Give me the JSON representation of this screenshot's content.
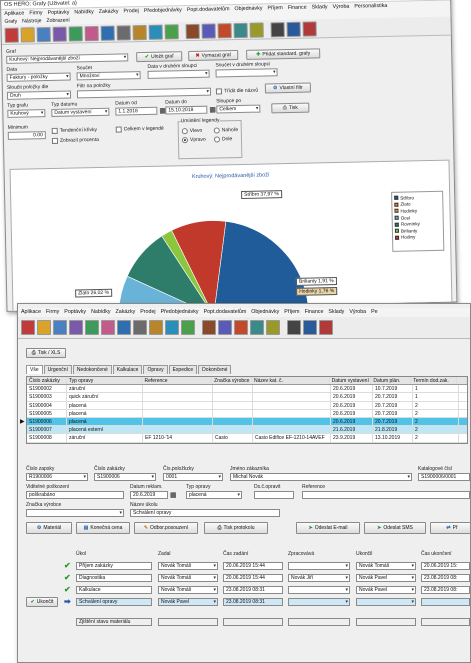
{
  "w1": {
    "title": "OS HERO: Grafy  (Uživatel: a)",
    "menu": [
      "Aplikace",
      "Firmy",
      "Poptávky",
      "Nabídky",
      "Zakázky",
      "Prodej",
      "Předobjednávky",
      "Popt.dodavatelům",
      "Objednávky",
      "Příjem",
      "Finance",
      "Sklady",
      "Výroba",
      "Personalistika"
    ],
    "submenu": [
      "Grafy",
      "Nástroje",
      "Zobrazení"
    ],
    "graf_label": "Graf",
    "graf_value": "Kruhový: Nejprodávanější zboží",
    "btn_save": "Uložit graf",
    "btn_delete": "Vymazat graf",
    "btn_add": "Přidat standard. grafy",
    "data_label": "Data",
    "data_value": "Faktury - položky",
    "soucet_label": "Součet",
    "soucet_value": "Množství",
    "data2_label": "Data v druhém sloupci",
    "soucet2_label": "Součet v druhém sloupci",
    "sloucit_label": "Sloučit položky dle",
    "sloucit_value": "Druh",
    "filtr_label": "Filtr na položky",
    "tridit_label": "Třídit dle názvů",
    "vlastni_filtr": "Vlastní filtr",
    "typ_grafu_label": "Typ grafu",
    "typ_grafu_value": "Kruhový",
    "typ_data_label": "Typ datumu",
    "typ_data_value": "Datum vystavení",
    "datum_od_label": "Datum od",
    "datum_od_value": "1.1.2018",
    "datum_do_label": "Datum do",
    "datum_do_value": "15.10.2018",
    "sloupce_label": "Sloupce po",
    "sloupce_value": "Celkem",
    "tisk": "Tisk",
    "minimum_label": "Minimum",
    "minimum_value": "0.00",
    "tendencni": "Tendenční křivky",
    "celkem_legenda": "Celkem v legendě",
    "zobrazit_procenta": "Zobrazit procenta",
    "umisteni_label": "Umístění legendy",
    "umisteni": [
      "Vlevo",
      "Vpravo",
      "Nahoře",
      "Dole"
    ]
  },
  "chart_data": {
    "type": "pie",
    "title": "Kruhový: Nejprodávanější zboží",
    "slices": [
      {
        "name": "Stříbro",
        "value": 37.97,
        "color": "#1f5c99"
      },
      {
        "name": "Zlato",
        "value": 26.02,
        "color": "#f28a30"
      },
      {
        "name": "Hodinky",
        "value": 1.76,
        "color": "#e8a628"
      },
      {
        "name": "Ocel",
        "value": 14.0,
        "color": "#6ab3d8"
      },
      {
        "name": "Rovnínky",
        "value": 9.0,
        "color": "#2e7d6b"
      },
      {
        "name": "Brilianty",
        "value": 1.91,
        "color": "#8cc63f"
      },
      {
        "name": "Hodiny",
        "value": 9.34,
        "color": "#c0392b"
      }
    ],
    "labels": {
      "Stříbro": "Stříbro 37,97 %",
      "Zlato": "Zlato 26,02 %",
      "Brilianty": "Brilianty 1,91 %",
      "Hodinky": "Hodinky 1,76 %"
    },
    "legend_position": "right"
  },
  "w2": {
    "menu": [
      "Aplikace",
      "Firmy",
      "Poptávky",
      "Nabídky",
      "Zakázky",
      "Prodej",
      "Předobjednávky",
      "Popt.dodavatelům",
      "Objednávky",
      "Příjem",
      "Finance",
      "Sklady",
      "Výroba",
      "Pe"
    ],
    "tisk_xls": "Tisk / XLS",
    "tabs": [
      "Vše",
      "Urgenční",
      "Nedokončené",
      "Kalkulace",
      "Opravy",
      "Expedice",
      "Dokončené"
    ],
    "columns": [
      "Číslo zakázky",
      "Typ opravy",
      "Reference",
      "Značka výrobce",
      "Název kat. č.",
      "Datum vystavení",
      "Datum plán.",
      "Termín dod.zak.",
      ""
    ],
    "rows": [
      [
        "S1900002",
        "záruční",
        "",
        "",
        "",
        "20.6.2019",
        "10.7.2019",
        "1"
      ],
      [
        "S1900003",
        "quick záruční",
        "",
        "",
        "",
        "20.6.2019",
        "20.7.2019",
        "1"
      ],
      [
        "S1900004",
        "placená",
        "",
        "",
        "",
        "20.6.2019",
        "20.7.2019",
        "2"
      ],
      [
        "S1900005",
        "placená",
        "",
        "",
        "",
        "20.6.2019",
        "20.7.2019",
        "2"
      ],
      [
        "S1900006",
        "placená",
        "",
        "",
        "",
        "20.6.2019",
        "20.7.2019",
        "2"
      ],
      [
        "S1900007",
        "placená externí",
        "",
        "",
        "",
        "21.6.2019",
        "21.8.2019",
        "2"
      ],
      [
        "S1900008",
        "záruční",
        "EF 1210-'14",
        "Casio",
        "Casio Edifice EF-1210-14AVEF",
        "23.9.2019",
        "13.10.2019",
        "2"
      ]
    ],
    "f_cislo_label": "Číslo zapsky",
    "f_cislo": "R1900006",
    "f_zakazky_label": "Číslo zakázky",
    "f_zakazky": "S1900006",
    "f_pol_label": "Čís.položkzky",
    "f_pol": "0001",
    "f_jmeno_label": "Jméno zákazníka",
    "f_jmeno": "Michal Novák",
    "f_kat_label": "Katalogové čísl",
    "f_kat": "S1900006/0001",
    "f_vid_label": "Viditelné poškození",
    "f_vid": "poškrabáno",
    "f_dat_label": "Datum reklam.",
    "f_dat": "20.6.2019",
    "f_typ_label": "Typ opravy",
    "f_typ": "placená",
    "f_ds_label": "Ds.č.opravit",
    "f_ref_label": "Reference",
    "f_zn_label": "Značka výrobce",
    "f_nazev_label": "Název úkolu",
    "f_nazev": "Schválení opravy",
    "b_material": "Materiál",
    "b_konecna": "Konečná cena",
    "b_odbor": "Odbor.posouzení",
    "b_tisk": "Tisk protokolu",
    "b_email": "Odeslat E-mail",
    "b_sms": "Odeslat SMS",
    "b_pr": "Př",
    "wf_headers": [
      "Úkol",
      "Zadal",
      "Čas zadání",
      "Zpracovává",
      "Ukončil",
      "Čas ukončení"
    ],
    "wf_rows": [
      [
        "Příjem zakázky",
        "Novák Tomáš",
        "20.06.2019 15:44",
        "",
        "Novák Tomáš",
        "20.06.2019 15:"
      ],
      [
        "Diagnostika",
        "Novák Tomáš",
        "20.06.2019 15:44",
        "Novák Jiří",
        "Novák Pavel",
        "23.08.2019 08:"
      ],
      [
        "Kalkulace",
        "Novák Tomáš",
        "23.08.2019 08:31",
        "",
        "Novák Pavel",
        "23.08.2019 08:"
      ],
      [
        "Schválení opravy",
        "Novák Pavel",
        "23.08.2019 08:31",
        "",
        "",
        ""
      ]
    ],
    "ukoncit": "Ukončit",
    "next_task": "Zjištění stavu materiálu"
  }
}
